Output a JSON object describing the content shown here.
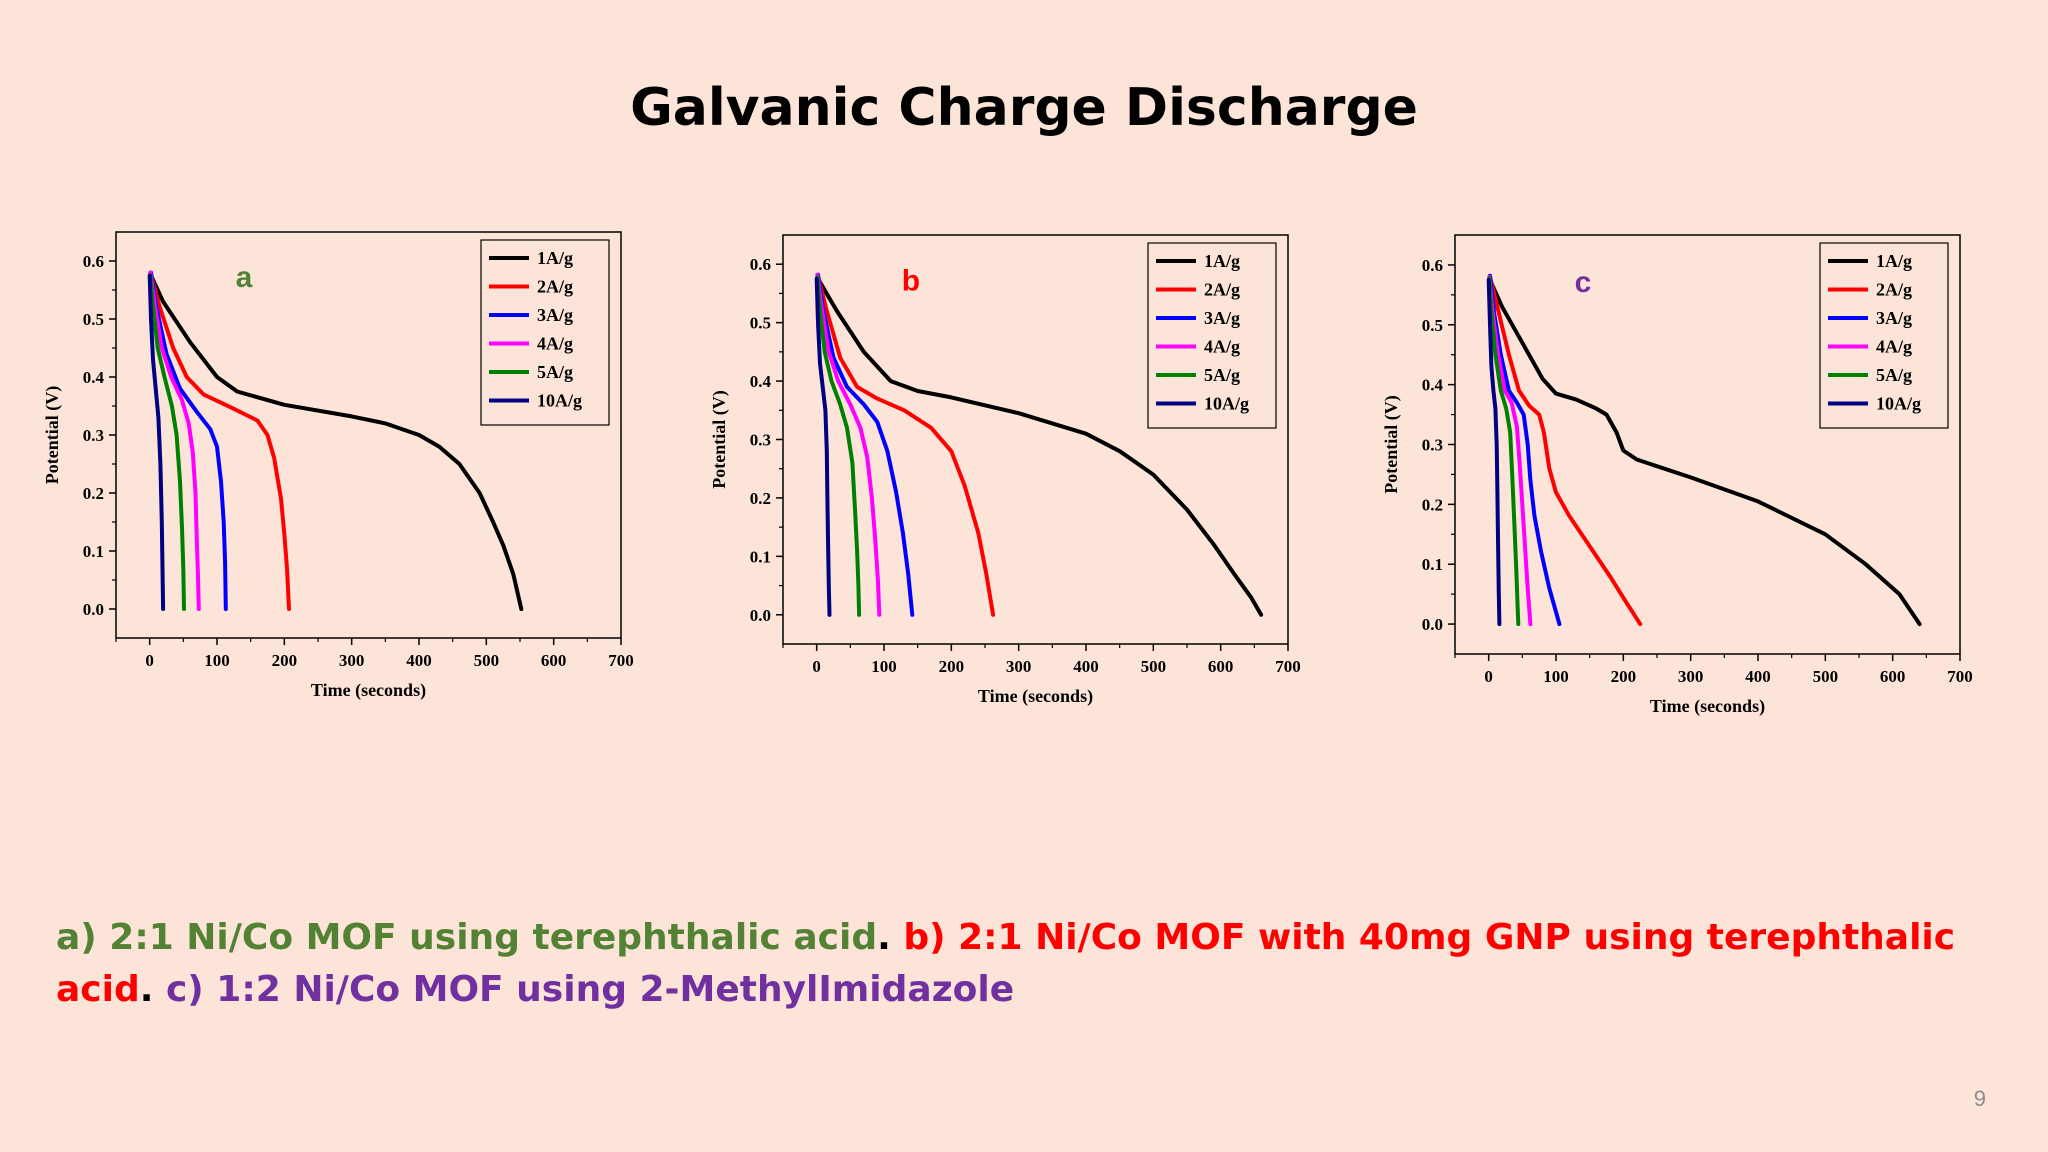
{
  "slide": {
    "title": "Galvanic Charge Discharge",
    "page_number": "9"
  },
  "caption": {
    "parts": [
      {
        "text": "a) 2:1 Ni/Co MOF using terephthalic acid",
        "color": "#548235"
      },
      {
        "text": ". ",
        "color": "#000000"
      },
      {
        "text": "b) 2:1 Ni/Co MOF with 40mg GNP using terephthalic acid",
        "color": "#ff0000"
      },
      {
        "text": ". ",
        "color": "#000000"
      },
      {
        "text": "c) 1:2 Ni/Co MOF using 2-MethylImidazole",
        "color": "#7030a0"
      }
    ]
  },
  "chart_data": [
    {
      "type": "line",
      "panel_label": "a",
      "panel_label_color": "#548235",
      "xlabel": "Time (seconds)",
      "ylabel": "Potential (V)",
      "xlim": [
        -50,
        700
      ],
      "ylim": [
        -0.05,
        0.65
      ],
      "xticks": [
        0,
        100,
        200,
        300,
        400,
        500,
        600,
        700
      ],
      "yticks": [
        0.0,
        0.1,
        0.2,
        0.3,
        0.4,
        0.5,
        0.6
      ],
      "grid": false,
      "legend_position": "top-right",
      "series": [
        {
          "name": "1A/g",
          "color": "#000000",
          "points": [
            [
              2,
              0.575
            ],
            [
              20,
              0.53
            ],
            [
              60,
              0.46
            ],
            [
              100,
              0.4
            ],
            [
              130,
              0.375
            ],
            [
              200,
              0.352
            ],
            [
              300,
              0.332
            ],
            [
              350,
              0.32
            ],
            [
              400,
              0.3
            ],
            [
              430,
              0.28
            ],
            [
              460,
              0.25
            ],
            [
              490,
              0.2
            ],
            [
              510,
              0.15
            ],
            [
              525,
              0.11
            ],
            [
              540,
              0.06
            ],
            [
              552,
              0.0
            ]
          ]
        },
        {
          "name": "2A/g",
          "color": "#ff0000",
          "points": [
            [
              2,
              0.578
            ],
            [
              15,
              0.52
            ],
            [
              35,
              0.45
            ],
            [
              55,
              0.4
            ],
            [
              80,
              0.37
            ],
            [
              120,
              0.348
            ],
            [
              160,
              0.325
            ],
            [
              175,
              0.3
            ],
            [
              185,
              0.26
            ],
            [
              195,
              0.19
            ],
            [
              200,
              0.13
            ],
            [
              204,
              0.07
            ],
            [
              207,
              0.0
            ]
          ]
        },
        {
          "name": "3A/g",
          "color": "#0000ff",
          "points": [
            [
              2,
              0.58
            ],
            [
              10,
              0.52
            ],
            [
              25,
              0.44
            ],
            [
              45,
              0.38
            ],
            [
              70,
              0.34
            ],
            [
              90,
              0.31
            ],
            [
              100,
              0.28
            ],
            [
              106,
              0.22
            ],
            [
              110,
              0.15
            ],
            [
              112,
              0.08
            ],
            [
              113,
              0.0
            ]
          ]
        },
        {
          "name": "4A/g",
          "color": "#ff00ff",
          "points": [
            [
              1,
              0.58
            ],
            [
              8,
              0.52
            ],
            [
              18,
              0.45
            ],
            [
              32,
              0.4
            ],
            [
              48,
              0.36
            ],
            [
              58,
              0.32
            ],
            [
              64,
              0.27
            ],
            [
              68,
              0.2
            ],
            [
              70,
              0.12
            ],
            [
              72,
              0.05
            ],
            [
              73,
              0.0
            ]
          ]
        },
        {
          "name": "5A/g",
          "color": "#008000",
          "points": [
            [
              1,
              0.575
            ],
            [
              5,
              0.52
            ],
            [
              12,
              0.45
            ],
            [
              22,
              0.4
            ],
            [
              33,
              0.35
            ],
            [
              40,
              0.3
            ],
            [
              45,
              0.22
            ],
            [
              48,
              0.14
            ],
            [
              50,
              0.07
            ],
            [
              51,
              0.0
            ]
          ]
        },
        {
          "name": "10A/g",
          "color": "#000080",
          "points": [
            [
              0,
              0.575
            ],
            [
              2,
              0.5
            ],
            [
              5,
              0.43
            ],
            [
              9,
              0.38
            ],
            [
              13,
              0.33
            ],
            [
              16,
              0.25
            ],
            [
              18,
              0.15
            ],
            [
              19,
              0.07
            ],
            [
              20,
              0.0
            ]
          ]
        }
      ]
    },
    {
      "type": "line",
      "panel_label": "b",
      "panel_label_color": "#ff0000",
      "xlabel": "Time (seconds)",
      "ylabel": "Potential (V)",
      "xlim": [
        -50,
        700
      ],
      "ylim": [
        -0.05,
        0.65
      ],
      "xticks": [
        0,
        100,
        200,
        300,
        400,
        500,
        600,
        700
      ],
      "yticks": [
        0.0,
        0.1,
        0.2,
        0.3,
        0.4,
        0.5,
        0.6
      ],
      "grid": false,
      "legend_position": "top-right",
      "series": [
        {
          "name": "1A/g",
          "color": "#000000",
          "points": [
            [
              2,
              0.575
            ],
            [
              30,
              0.52
            ],
            [
              70,
              0.45
            ],
            [
              110,
              0.4
            ],
            [
              150,
              0.383
            ],
            [
              200,
              0.372
            ],
            [
              300,
              0.345
            ],
            [
              400,
              0.31
            ],
            [
              450,
              0.28
            ],
            [
              500,
              0.24
            ],
            [
              550,
              0.18
            ],
            [
              590,
              0.12
            ],
            [
              620,
              0.07
            ],
            [
              645,
              0.03
            ],
            [
              660,
              0.0
            ]
          ]
        },
        {
          "name": "2A/g",
          "color": "#ff0000",
          "points": [
            [
              2,
              0.58
            ],
            [
              15,
              0.52
            ],
            [
              35,
              0.44
            ],
            [
              60,
              0.39
            ],
            [
              90,
              0.37
            ],
            [
              130,
              0.35
            ],
            [
              170,
              0.32
            ],
            [
              200,
              0.28
            ],
            [
              220,
              0.22
            ],
            [
              240,
              0.14
            ],
            [
              252,
              0.07
            ],
            [
              262,
              0.0
            ]
          ]
        },
        {
          "name": "3A/g",
          "color": "#0000ff",
          "points": [
            [
              2,
              0.582
            ],
            [
              10,
              0.52
            ],
            [
              25,
              0.44
            ],
            [
              45,
              0.39
            ],
            [
              70,
              0.36
            ],
            [
              90,
              0.33
            ],
            [
              105,
              0.28
            ],
            [
              118,
              0.21
            ],
            [
              128,
              0.14
            ],
            [
              136,
              0.07
            ],
            [
              142,
              0.0
            ]
          ]
        },
        {
          "name": "4A/g",
          "color": "#ff00ff",
          "points": [
            [
              1,
              0.582
            ],
            [
              8,
              0.52
            ],
            [
              18,
              0.45
            ],
            [
              32,
              0.4
            ],
            [
              50,
              0.36
            ],
            [
              65,
              0.32
            ],
            [
              75,
              0.27
            ],
            [
              82,
              0.2
            ],
            [
              87,
              0.13
            ],
            [
              91,
              0.06
            ],
            [
              93,
              0.0
            ]
          ]
        },
        {
          "name": "5A/g",
          "color": "#008000",
          "points": [
            [
              1,
              0.578
            ],
            [
              5,
              0.52
            ],
            [
              12,
              0.45
            ],
            [
              22,
              0.4
            ],
            [
              35,
              0.36
            ],
            [
              45,
              0.32
            ],
            [
              53,
              0.26
            ],
            [
              57,
              0.18
            ],
            [
              60,
              0.11
            ],
            [
              62,
              0.05
            ],
            [
              63,
              0.0
            ]
          ]
        },
        {
          "name": "10A/g",
          "color": "#000080",
          "points": [
            [
              0,
              0.575
            ],
            [
              2,
              0.5
            ],
            [
              5,
              0.43
            ],
            [
              9,
              0.39
            ],
            [
              13,
              0.35
            ],
            [
              15,
              0.28
            ],
            [
              16,
              0.2
            ],
            [
              17,
              0.12
            ],
            [
              18,
              0.05
            ],
            [
              19,
              0.0
            ]
          ]
        }
      ]
    },
    {
      "type": "line",
      "panel_label": "c",
      "panel_label_color": "#7030a0",
      "xlabel": "Time (seconds)",
      "ylabel": "Potential (V)",
      "xlim": [
        -50,
        700
      ],
      "ylim": [
        -0.05,
        0.65
      ],
      "xticks": [
        0,
        100,
        200,
        300,
        400,
        500,
        600,
        700
      ],
      "yticks": [
        0.0,
        0.1,
        0.2,
        0.3,
        0.4,
        0.5,
        0.6
      ],
      "grid": false,
      "legend_position": "top-right",
      "series": [
        {
          "name": "1A/g",
          "color": "#000000",
          "points": [
            [
              2,
              0.575
            ],
            [
              20,
              0.53
            ],
            [
              50,
              0.47
            ],
            [
              80,
              0.41
            ],
            [
              100,
              0.385
            ],
            [
              130,
              0.375
            ],
            [
              160,
              0.36
            ],
            [
              175,
              0.35
            ],
            [
              190,
              0.32
            ],
            [
              200,
              0.29
            ],
            [
              220,
              0.275
            ],
            [
              300,
              0.245
            ],
            [
              400,
              0.205
            ],
            [
              500,
              0.15
            ],
            [
              560,
              0.1
            ],
            [
              610,
              0.05
            ],
            [
              640,
              0.0
            ]
          ]
        },
        {
          "name": "2A/g",
          "color": "#ff0000",
          "points": [
            [
              2,
              0.58
            ],
            [
              15,
              0.52
            ],
            [
              30,
              0.45
            ],
            [
              45,
              0.39
            ],
            [
              60,
              0.365
            ],
            [
              75,
              0.35
            ],
            [
              82,
              0.32
            ],
            [
              90,
              0.26
            ],
            [
              100,
              0.22
            ],
            [
              120,
              0.18
            ],
            [
              150,
              0.13
            ],
            [
              180,
              0.08
            ],
            [
              205,
              0.035
            ],
            [
              225,
              0.0
            ]
          ]
        },
        {
          "name": "3A/g",
          "color": "#0000ff",
          "points": [
            [
              2,
              0.582
            ],
            [
              8,
              0.52
            ],
            [
              18,
              0.45
            ],
            [
              30,
              0.39
            ],
            [
              42,
              0.37
            ],
            [
              52,
              0.35
            ],
            [
              58,
              0.3
            ],
            [
              62,
              0.24
            ],
            [
              68,
              0.18
            ],
            [
              78,
              0.12
            ],
            [
              90,
              0.06
            ],
            [
              105,
              0.0
            ]
          ]
        },
        {
          "name": "4A/g",
          "color": "#ff00ff",
          "points": [
            [
              1,
              0.58
            ],
            [
              6,
              0.52
            ],
            [
              14,
              0.45
            ],
            [
              24,
              0.39
            ],
            [
              34,
              0.37
            ],
            [
              42,
              0.33
            ],
            [
              46,
              0.27
            ],
            [
              50,
              0.2
            ],
            [
              54,
              0.13
            ],
            [
              58,
              0.06
            ],
            [
              62,
              0.0
            ]
          ]
        },
        {
          "name": "5A/g",
          "color": "#008000",
          "points": [
            [
              1,
              0.578
            ],
            [
              4,
              0.52
            ],
            [
              10,
              0.45
            ],
            [
              18,
              0.39
            ],
            [
              26,
              0.36
            ],
            [
              32,
              0.32
            ],
            [
              35,
              0.25
            ],
            [
              38,
              0.17
            ],
            [
              41,
              0.09
            ],
            [
              43,
              0.03
            ],
            [
              44,
              0.0
            ]
          ]
        },
        {
          "name": "10A/g",
          "color": "#000080",
          "points": [
            [
              0,
              0.575
            ],
            [
              2,
              0.5
            ],
            [
              4,
              0.43
            ],
            [
              7,
              0.39
            ],
            [
              10,
              0.36
            ],
            [
              12,
              0.3
            ],
            [
              13,
              0.22
            ],
            [
              14,
              0.13
            ],
            [
              15,
              0.05
            ],
            [
              16,
              0.0
            ]
          ]
        }
      ]
    }
  ]
}
